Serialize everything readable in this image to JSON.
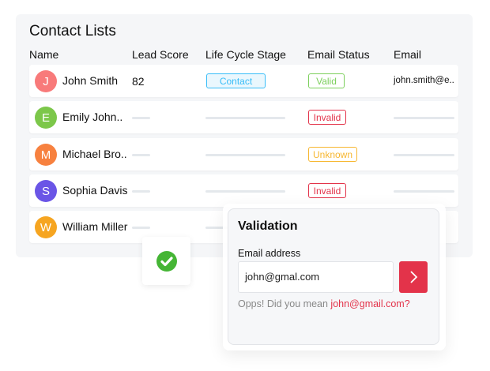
{
  "title": "Contact Lists",
  "headers": [
    "Name",
    "Lead Score",
    "Life Cycle Stage",
    "Email Status",
    "Email"
  ],
  "rows": [
    {
      "initial": "J",
      "name": "John Smith",
      "color": "#f87a7a",
      "score": "82",
      "stage": "Contact",
      "status": "Valid",
      "email": "john.smith@e.."
    },
    {
      "initial": "E",
      "name": "Emily John..",
      "color": "#7cc74a",
      "status": "Invalid"
    },
    {
      "initial": "M",
      "name": "Michael Bro..",
      "color": "#f7813f",
      "status": "Unknown"
    },
    {
      "initial": "S",
      "name": "Sophia Davis",
      "color": "#6a55e6",
      "status": "Invalid"
    },
    {
      "initial": "W",
      "name": "William Miller",
      "color": "#f6a521"
    }
  ],
  "status_colors": {
    "Valid": "#7ccf5c",
    "Invalid": "#e3334a",
    "Unknown": "#f7b731",
    "Contact": "#38bdf8"
  },
  "validation": {
    "title": "Validation",
    "label": "Email address",
    "value": "john@gmal.com",
    "hint": "Opps! Did you mean ",
    "suggestion": "john@gmail.com?",
    "submit_icon": "chevron-right-icon"
  },
  "check_icon": "check-circle-icon"
}
